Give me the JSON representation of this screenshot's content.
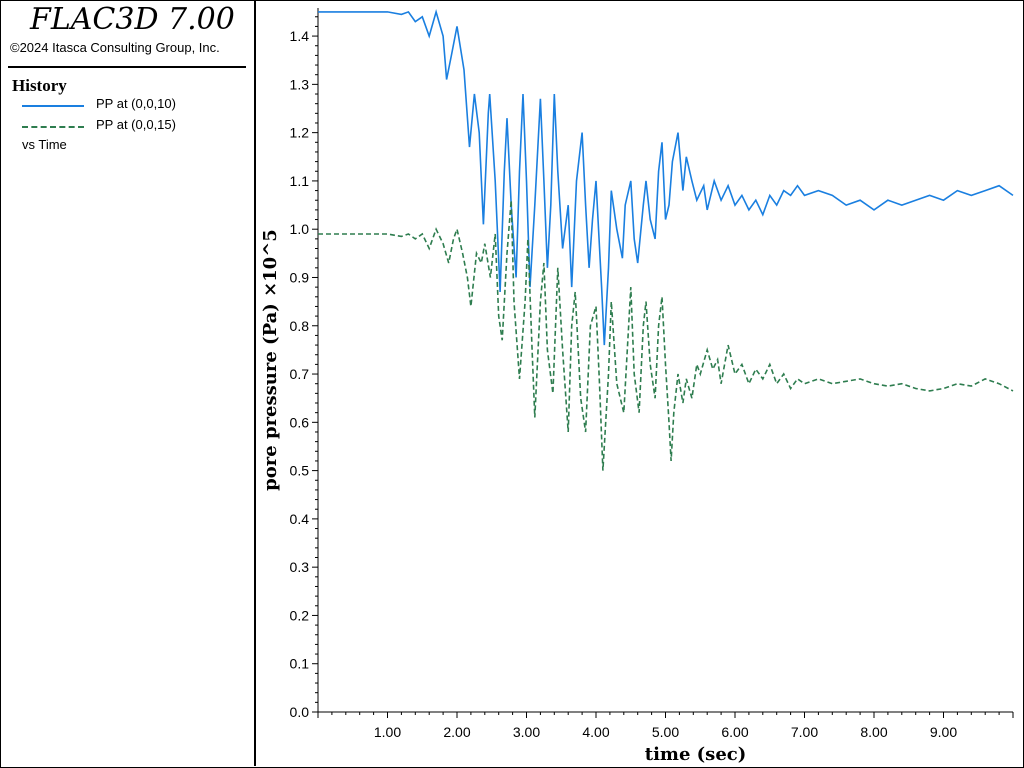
{
  "app": {
    "title": "FLAC3D 7.00",
    "copyright": "©2024 Itasca Consulting Group, Inc."
  },
  "legend": {
    "heading": "History",
    "vs_label": "vs Time",
    "items": [
      {
        "label": "PP at (0,0,10)",
        "color": "#1a7fe0",
        "style": "solid"
      },
      {
        "label": "PP at (0,0,15)",
        "color": "#2e7d4f",
        "style": "dashed"
      }
    ]
  },
  "axes": {
    "xlabel": "time (sec)",
    "ylabel": "pore pressure (Pa) ×10^5"
  },
  "chart_data": {
    "type": "line",
    "title": "",
    "xlabel": "time (sec)",
    "ylabel": "pore pressure (Pa) ×10^5",
    "xlim": [
      0,
      10
    ],
    "ylim": [
      0,
      1.45
    ],
    "x_ticks": [
      1,
      2,
      3,
      4,
      5,
      6,
      7,
      8,
      9
    ],
    "x_tick_labels": [
      "1.00",
      "2.00",
      "3.00",
      "4.00",
      "5.00",
      "6.00",
      "7.00",
      "8.00",
      "9.00"
    ],
    "y_ticks": [
      0,
      0.1,
      0.2,
      0.3,
      0.4,
      0.5,
      0.6,
      0.7,
      0.8,
      0.9,
      1.0,
      1.1,
      1.2,
      1.3,
      1.4
    ],
    "y_tick_labels": [
      "0.0",
      "0.1",
      "0.2",
      "0.3",
      "0.4",
      "0.5",
      "0.6",
      "0.7",
      "0.8",
      "0.9",
      "1.0",
      "1.1",
      "1.2",
      "1.3",
      "1.4"
    ],
    "grid": false,
    "legend_position": "left panel",
    "series": [
      {
        "name": "PP at (0,0,10)",
        "color": "#1a7fe0",
        "style": "solid",
        "points": [
          [
            0.0,
            1.45
          ],
          [
            0.5,
            1.45
          ],
          [
            1.0,
            1.45
          ],
          [
            1.2,
            1.445
          ],
          [
            1.3,
            1.45
          ],
          [
            1.4,
            1.43
          ],
          [
            1.5,
            1.44
          ],
          [
            1.6,
            1.4
          ],
          [
            1.7,
            1.45
          ],
          [
            1.8,
            1.4
          ],
          [
            1.85,
            1.31
          ],
          [
            1.92,
            1.36
          ],
          [
            2.0,
            1.42
          ],
          [
            2.1,
            1.33
          ],
          [
            2.18,
            1.17
          ],
          [
            2.25,
            1.28
          ],
          [
            2.32,
            1.2
          ],
          [
            2.38,
            1.01
          ],
          [
            2.45,
            1.24
          ],
          [
            2.47,
            1.28
          ],
          [
            2.55,
            1.1
          ],
          [
            2.62,
            0.87
          ],
          [
            2.68,
            1.12
          ],
          [
            2.72,
            1.23
          ],
          [
            2.78,
            1.05
          ],
          [
            2.85,
            0.9
          ],
          [
            2.9,
            1.12
          ],
          [
            2.95,
            1.28
          ],
          [
            3.0,
            1.1
          ],
          [
            3.05,
            0.88
          ],
          [
            3.12,
            1.05
          ],
          [
            3.2,
            1.27
          ],
          [
            3.25,
            1.1
          ],
          [
            3.3,
            0.92
          ],
          [
            3.35,
            1.05
          ],
          [
            3.4,
            1.28
          ],
          [
            3.45,
            1.12
          ],
          [
            3.52,
            0.96
          ],
          [
            3.6,
            1.05
          ],
          [
            3.65,
            0.88
          ],
          [
            3.72,
            1.1
          ],
          [
            3.8,
            1.2
          ],
          [
            3.85,
            1.05
          ],
          [
            3.9,
            0.92
          ],
          [
            3.95,
            1.02
          ],
          [
            4.0,
            1.1
          ],
          [
            4.08,
            0.88
          ],
          [
            4.12,
            0.76
          ],
          [
            4.18,
            0.92
          ],
          [
            4.22,
            1.08
          ],
          [
            4.3,
            1.0
          ],
          [
            4.38,
            0.94
          ],
          [
            4.42,
            1.05
          ],
          [
            4.5,
            1.1
          ],
          [
            4.55,
            0.98
          ],
          [
            4.6,
            0.93
          ],
          [
            4.68,
            1.05
          ],
          [
            4.72,
            1.1
          ],
          [
            4.78,
            1.02
          ],
          [
            4.85,
            0.98
          ],
          [
            4.9,
            1.12
          ],
          [
            4.95,
            1.18
          ],
          [
            5.0,
            1.02
          ],
          [
            5.05,
            1.05
          ],
          [
            5.1,
            1.14
          ],
          [
            5.18,
            1.2
          ],
          [
            5.25,
            1.08
          ],
          [
            5.3,
            1.15
          ],
          [
            5.38,
            1.1
          ],
          [
            5.45,
            1.06
          ],
          [
            5.55,
            1.09
          ],
          [
            5.6,
            1.04
          ],
          [
            5.7,
            1.1
          ],
          [
            5.8,
            1.06
          ],
          [
            5.9,
            1.09
          ],
          [
            6.0,
            1.05
          ],
          [
            6.1,
            1.07
          ],
          [
            6.2,
            1.04
          ],
          [
            6.3,
            1.06
          ],
          [
            6.4,
            1.03
          ],
          [
            6.5,
            1.07
          ],
          [
            6.6,
            1.05
          ],
          [
            6.7,
            1.08
          ],
          [
            6.8,
            1.07
          ],
          [
            6.9,
            1.09
          ],
          [
            7.0,
            1.07
          ],
          [
            7.2,
            1.08
          ],
          [
            7.4,
            1.07
          ],
          [
            7.6,
            1.05
          ],
          [
            7.8,
            1.06
          ],
          [
            8.0,
            1.04
          ],
          [
            8.2,
            1.06
          ],
          [
            8.4,
            1.05
          ],
          [
            8.6,
            1.06
          ],
          [
            8.8,
            1.07
          ],
          [
            9.0,
            1.06
          ],
          [
            9.2,
            1.08
          ],
          [
            9.4,
            1.07
          ],
          [
            9.6,
            1.08
          ],
          [
            9.8,
            1.09
          ],
          [
            10.0,
            1.07
          ]
        ]
      },
      {
        "name": "PP at (0,0,15)",
        "color": "#2e7d4f",
        "style": "dashed",
        "points": [
          [
            0.0,
            0.99
          ],
          [
            0.5,
            0.99
          ],
          [
            1.0,
            0.99
          ],
          [
            1.2,
            0.985
          ],
          [
            1.3,
            0.99
          ],
          [
            1.4,
            0.98
          ],
          [
            1.5,
            0.99
          ],
          [
            1.6,
            0.96
          ],
          [
            1.7,
            1.0
          ],
          [
            1.8,
            0.97
          ],
          [
            1.88,
            0.93
          ],
          [
            1.95,
            0.98
          ],
          [
            2.0,
            1.0
          ],
          [
            2.08,
            0.95
          ],
          [
            2.15,
            0.9
          ],
          [
            2.2,
            0.84
          ],
          [
            2.28,
            0.95
          ],
          [
            2.35,
            0.93
          ],
          [
            2.4,
            0.97
          ],
          [
            2.48,
            0.9
          ],
          [
            2.55,
            0.99
          ],
          [
            2.6,
            0.82
          ],
          [
            2.65,
            0.77
          ],
          [
            2.72,
            0.95
          ],
          [
            2.78,
            1.06
          ],
          [
            2.82,
            0.85
          ],
          [
            2.9,
            0.69
          ],
          [
            2.98,
            0.85
          ],
          [
            3.02,
            0.98
          ],
          [
            3.08,
            0.75
          ],
          [
            3.12,
            0.61
          ],
          [
            3.2,
            0.85
          ],
          [
            3.25,
            0.93
          ],
          [
            3.3,
            0.75
          ],
          [
            3.38,
            0.66
          ],
          [
            3.45,
            0.92
          ],
          [
            3.52,
            0.75
          ],
          [
            3.6,
            0.58
          ],
          [
            3.65,
            0.8
          ],
          [
            3.7,
            0.87
          ],
          [
            3.78,
            0.65
          ],
          [
            3.85,
            0.58
          ],
          [
            3.92,
            0.8
          ],
          [
            4.0,
            0.84
          ],
          [
            4.05,
            0.68
          ],
          [
            4.1,
            0.5
          ],
          [
            4.18,
            0.7
          ],
          [
            4.22,
            0.85
          ],
          [
            4.3,
            0.68
          ],
          [
            4.4,
            0.62
          ],
          [
            4.45,
            0.75
          ],
          [
            4.5,
            0.88
          ],
          [
            4.55,
            0.7
          ],
          [
            4.62,
            0.62
          ],
          [
            4.68,
            0.8
          ],
          [
            4.72,
            0.85
          ],
          [
            4.78,
            0.72
          ],
          [
            4.85,
            0.65
          ],
          [
            4.9,
            0.8
          ],
          [
            4.95,
            0.86
          ],
          [
            5.0,
            0.72
          ],
          [
            5.05,
            0.6
          ],
          [
            5.08,
            0.52
          ],
          [
            5.12,
            0.62
          ],
          [
            5.18,
            0.7
          ],
          [
            5.25,
            0.64
          ],
          [
            5.3,
            0.69
          ],
          [
            5.38,
            0.65
          ],
          [
            5.45,
            0.72
          ],
          [
            5.5,
            0.7
          ],
          [
            5.6,
            0.75
          ],
          [
            5.68,
            0.71
          ],
          [
            5.75,
            0.73
          ],
          [
            5.8,
            0.68
          ],
          [
            5.9,
            0.76
          ],
          [
            6.0,
            0.7
          ],
          [
            6.1,
            0.72
          ],
          [
            6.2,
            0.68
          ],
          [
            6.3,
            0.71
          ],
          [
            6.4,
            0.69
          ],
          [
            6.5,
            0.72
          ],
          [
            6.6,
            0.68
          ],
          [
            6.7,
            0.7
          ],
          [
            6.8,
            0.67
          ],
          [
            6.9,
            0.69
          ],
          [
            7.0,
            0.68
          ],
          [
            7.2,
            0.69
          ],
          [
            7.4,
            0.68
          ],
          [
            7.6,
            0.685
          ],
          [
            7.8,
            0.69
          ],
          [
            8.0,
            0.68
          ],
          [
            8.2,
            0.675
          ],
          [
            8.4,
            0.68
          ],
          [
            8.6,
            0.67
          ],
          [
            8.8,
            0.665
          ],
          [
            9.0,
            0.67
          ],
          [
            9.2,
            0.68
          ],
          [
            9.4,
            0.675
          ],
          [
            9.6,
            0.69
          ],
          [
            9.8,
            0.68
          ],
          [
            10.0,
            0.665
          ]
        ]
      }
    ]
  }
}
